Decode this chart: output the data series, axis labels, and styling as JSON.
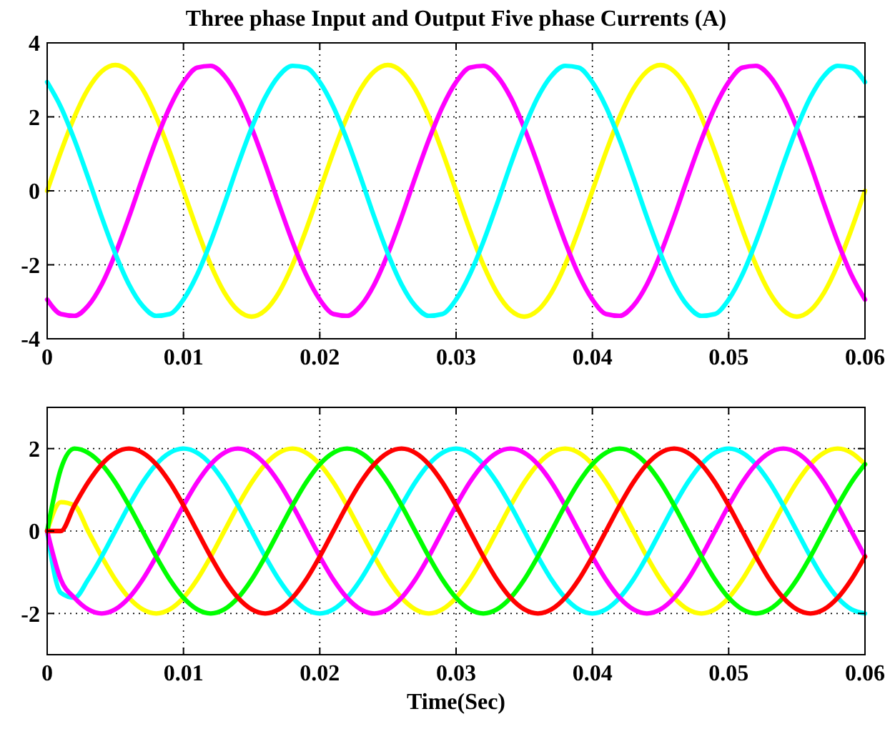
{
  "chart_data": [
    {
      "type": "line",
      "title": "Three phase Input and Output Five phase Currents (A)",
      "x": [
        0,
        0.001,
        0.002,
        0.003,
        0.004,
        0.005,
        0.006,
        0.007,
        0.008,
        0.009,
        0.01,
        0.011,
        0.012,
        0.013,
        0.014,
        0.015,
        0.016,
        0.017,
        0.018,
        0.019,
        0.02,
        0.021,
        0.022,
        0.023,
        0.024,
        0.025,
        0.026,
        0.027,
        0.028,
        0.029,
        0.03,
        0.031,
        0.032,
        0.033,
        0.034,
        0.035,
        0.036,
        0.037,
        0.038,
        0.039,
        0.04,
        0.041,
        0.042,
        0.043,
        0.044,
        0.045,
        0.046,
        0.047,
        0.048,
        0.049,
        0.05,
        0.051,
        0.052,
        0.053,
        0.054,
        0.055,
        0.056,
        0.057,
        0.058,
        0.059,
        0.06
      ],
      "xlim": [
        0,
        0.06
      ],
      "xticks": [
        0,
        0.01,
        0.02,
        0.03,
        0.04,
        0.05,
        0.06
      ],
      "ylim": [
        -4,
        4
      ],
      "yticks": [
        -4,
        -2,
        0,
        2,
        4
      ],
      "grid": true,
      "line_style": "solid",
      "marker": "none",
      "series": [
        {
          "color": "#ffff00",
          "values": [
            0,
            1.05,
            2,
            2.75,
            3.23,
            3.4,
            3.23,
            2.75,
            2,
            1.05,
            0,
            -1.05,
            -2,
            -2.75,
            -3.23,
            -3.4,
            -3.23,
            -2.75,
            -2,
            -1.05,
            0,
            1.05,
            2,
            2.75,
            3.23,
            3.4,
            3.23,
            2.75,
            2,
            1.05,
            0,
            -1.05,
            -2,
            -2.75,
            -3.23,
            -3.4,
            -3.23,
            -2.75,
            -2,
            -1.05,
            0,
            1.05,
            2,
            2.75,
            3.23,
            3.4,
            3.23,
            2.75,
            2,
            1.05,
            0,
            -1.05,
            -2,
            -2.75,
            -3.23,
            -3.4,
            -3.23,
            -2.75,
            -2,
            -1.05,
            0
          ]
        },
        {
          "color": "#ff00ff",
          "values": [
            -2.94,
            -3.33,
            -3.38,
            -3.11,
            -2.53,
            -1.7,
            -0.71,
            0.36,
            1.38,
            2.27,
            2.94,
            3.33,
            3.38,
            3.11,
            2.53,
            1.7,
            0.71,
            -0.36,
            -1.38,
            -2.27,
            -2.94,
            -3.33,
            -3.38,
            -3.11,
            -2.53,
            -1.7,
            -0.71,
            0.36,
            1.38,
            2.27,
            2.94,
            3.33,
            3.38,
            3.11,
            2.53,
            1.7,
            0.71,
            -0.36,
            -1.38,
            -2.27,
            -2.94,
            -3.33,
            -3.38,
            -3.11,
            -2.53,
            -1.7,
            -0.71,
            0.36,
            1.38,
            2.27,
            2.94,
            3.33,
            3.38,
            3.11,
            2.53,
            1.7,
            0.71,
            -0.36,
            -1.38,
            -2.27,
            -2.94
          ]
        },
        {
          "color": "#00ffff",
          "values": [
            2.94,
            2.27,
            1.38,
            0.36,
            -0.71,
            -1.7,
            -2.53,
            -3.11,
            -3.38,
            -3.33,
            -2.94,
            -2.27,
            -1.38,
            -0.36,
            0.71,
            1.7,
            2.53,
            3.11,
            3.38,
            3.33,
            2.94,
            2.27,
            1.38,
            0.36,
            -0.71,
            -1.7,
            -2.53,
            -3.11,
            -3.38,
            -3.33,
            -2.94,
            -2.27,
            -1.38,
            -0.36,
            0.71,
            1.7,
            2.53,
            3.11,
            3.38,
            3.33,
            2.94,
            2.27,
            1.38,
            0.36,
            -0.71,
            -1.7,
            -2.53,
            -3.11,
            -3.38,
            -3.33,
            -2.94,
            -2.27,
            -1.38,
            -0.36,
            0.71,
            1.7,
            2.53,
            3.11,
            3.38,
            3.33,
            2.94
          ]
        }
      ]
    },
    {
      "type": "line",
      "xlabel": "Time(Sec)",
      "x": [
        0,
        0.001,
        0.002,
        0.003,
        0.004,
        0.005,
        0.006,
        0.007,
        0.008,
        0.009,
        0.01,
        0.011,
        0.012,
        0.013,
        0.014,
        0.015,
        0.016,
        0.017,
        0.018,
        0.019,
        0.02,
        0.021,
        0.022,
        0.023,
        0.024,
        0.025,
        0.026,
        0.027,
        0.028,
        0.029,
        0.03,
        0.031,
        0.032,
        0.033,
        0.034,
        0.035,
        0.036,
        0.037,
        0.038,
        0.039,
        0.04,
        0.041,
        0.042,
        0.043,
        0.044,
        0.045,
        0.046,
        0.047,
        0.048,
        0.049,
        0.05,
        0.051,
        0.052,
        0.053,
        0.054,
        0.055,
        0.056,
        0.057,
        0.058,
        0.059,
        0.06
      ],
      "xlim": [
        0,
        0.06
      ],
      "xticks": [
        0,
        0.01,
        0.02,
        0.03,
        0.04,
        0.05,
        0.06
      ],
      "ylim": [
        -3,
        3
      ],
      "yticks": [
        -2,
        0,
        2
      ],
      "grid": true,
      "line_style": "solid",
      "marker": "none",
      "series": [
        {
          "color": "#ffff00",
          "values": [
            0,
            0.7,
            0.62,
            0,
            -0.62,
            -1.18,
            -1.62,
            -1.9,
            -2,
            -1.9,
            -1.62,
            -1.18,
            -0.62,
            0,
            0.62,
            1.18,
            1.62,
            1.9,
            2,
            1.9,
            1.62,
            1.18,
            0.62,
            0,
            -0.62,
            -1.18,
            -1.62,
            -1.9,
            -2,
            -1.9,
            -1.62,
            -1.18,
            -0.62,
            0,
            0.62,
            1.18,
            1.62,
            1.9,
            2,
            1.9,
            1.62,
            1.18,
            0.62,
            0,
            -0.62,
            -1.18,
            -1.62,
            -1.9,
            -2,
            -1.9,
            -1.62,
            -1.18,
            -0.62,
            0,
            0.62,
            1.18,
            1.62,
            1.9,
            2,
            1.9,
            1.62
          ]
        },
        {
          "color": "#00ffff",
          "values": [
            0,
            -1.5,
            -1.62,
            -1.18,
            -0.62,
            0,
            0.62,
            1.18,
            1.62,
            1.9,
            2,
            1.9,
            1.62,
            1.18,
            0.62,
            0,
            -0.62,
            -1.18,
            -1.62,
            -1.9,
            -2,
            -1.9,
            -1.62,
            -1.18,
            -0.62,
            0,
            0.62,
            1.18,
            1.62,
            1.9,
            2,
            1.9,
            1.62,
            1.18,
            0.62,
            0,
            -0.62,
            -1.18,
            -1.62,
            -1.9,
            -2,
            -1.9,
            -1.62,
            -1.18,
            -0.62,
            0,
            0.62,
            1.18,
            1.62,
            1.9,
            2,
            1.9,
            1.62,
            1.18,
            0.62,
            0,
            -0.62,
            -1.18,
            -1.62,
            -1.9,
            -2
          ]
        },
        {
          "color": "#ff00ff",
          "values": [
            0,
            -1.18,
            -1.62,
            -1.9,
            -2,
            -1.9,
            -1.62,
            -1.18,
            -0.62,
            0,
            0.62,
            1.18,
            1.62,
            1.9,
            2,
            1.9,
            1.62,
            1.18,
            0.62,
            0,
            -0.62,
            -1.18,
            -1.62,
            -1.9,
            -2,
            -1.9,
            -1.62,
            -1.18,
            -0.62,
            0,
            0.62,
            1.18,
            1.62,
            1.9,
            2,
            1.9,
            1.62,
            1.18,
            0.62,
            0,
            -0.62,
            -1.18,
            -1.62,
            -1.9,
            -2,
            -1.9,
            -1.62,
            -1.18,
            -0.62,
            0,
            0.62,
            1.18,
            1.62,
            1.9,
            2,
            1.9,
            1.62,
            1.18,
            0.62,
            0,
            -0.62
          ]
        },
        {
          "color": "#00ff00",
          "values": [
            0,
            1.5,
            2,
            1.9,
            1.62,
            1.18,
            0.62,
            0,
            -0.62,
            -1.18,
            -1.62,
            -1.9,
            -2,
            -1.9,
            -1.62,
            -1.18,
            -0.62,
            0,
            0.62,
            1.18,
            1.62,
            1.9,
            2,
            1.9,
            1.62,
            1.18,
            0.62,
            0,
            -0.62,
            -1.18,
            -1.62,
            -1.9,
            -2,
            -1.9,
            -1.62,
            -1.18,
            -0.62,
            0,
            0.62,
            1.18,
            1.62,
            1.9,
            2,
            1.9,
            1.62,
            1.18,
            0.62,
            0,
            -0.62,
            -1.18,
            -1.62,
            -1.9,
            -2,
            -1.9,
            -1.62,
            -1.18,
            -0.62,
            0,
            0.62,
            1.18,
            1.62
          ]
        },
        {
          "color": "#ff0000",
          "values": [
            0,
            0,
            0.62,
            1.18,
            1.62,
            1.9,
            2,
            1.9,
            1.62,
            1.18,
            0.62,
            0,
            -0.62,
            -1.18,
            -1.62,
            -1.9,
            -2,
            -1.9,
            -1.62,
            -1.18,
            -0.62,
            0,
            0.62,
            1.18,
            1.62,
            1.9,
            2,
            1.9,
            1.62,
            1.18,
            0.62,
            0,
            -0.62,
            -1.18,
            -1.62,
            -1.9,
            -2,
            -1.9,
            -1.62,
            -1.18,
            -0.62,
            0,
            0.62,
            1.18,
            1.62,
            1.9,
            2,
            1.9,
            1.62,
            1.18,
            0.62,
            0,
            -0.62,
            -1.18,
            -1.62,
            -1.9,
            -2,
            -1.9,
            -1.62,
            -1.18,
            -0.62
          ]
        }
      ]
    }
  ]
}
